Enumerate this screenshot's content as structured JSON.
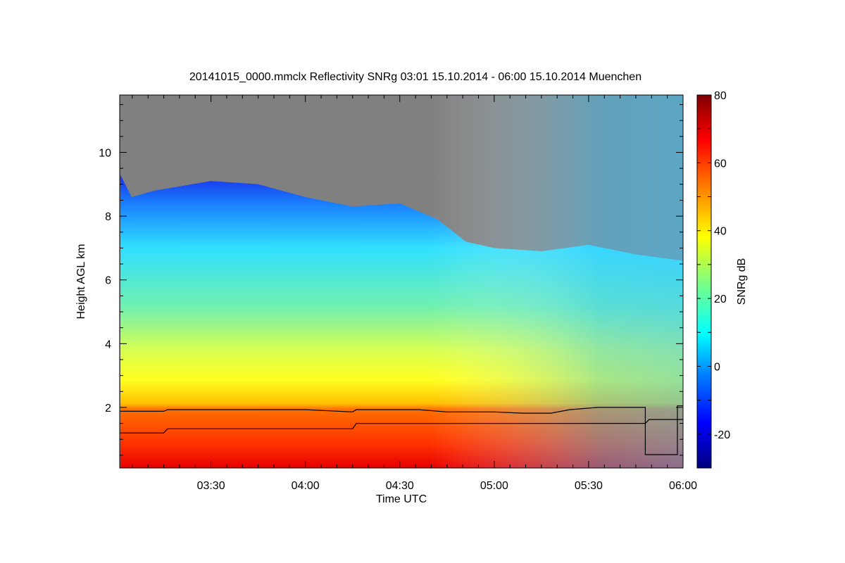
{
  "chart_data": {
    "type": "heatmap",
    "title": "20141015_0000.mmclx Reflectivity SNRg   03:01 15.10.2014 - 06:00 15.10.2014 Muenchen",
    "xlabel": "Time UTC",
    "ylabel": "Height AGL km",
    "colorbar_label": "SNRg dB",
    "x_range_hours": [
      3.0167,
      6.0
    ],
    "y_range_km": [
      0.1,
      11.8
    ],
    "x_ticks": [
      {
        "value": 3.5,
        "label": "03:30"
      },
      {
        "value": 4.0,
        "label": "04:00"
      },
      {
        "value": 4.5,
        "label": "04:30"
      },
      {
        "value": 5.0,
        "label": "05:00"
      },
      {
        "value": 5.5,
        "label": "05:30"
      },
      {
        "value": 6.0,
        "label": "06:00"
      }
    ],
    "y_ticks": [
      {
        "value": 2,
        "label": "2"
      },
      {
        "value": 4,
        "label": "4"
      },
      {
        "value": 6,
        "label": "6"
      },
      {
        "value": 8,
        "label": "8"
      },
      {
        "value": 10,
        "label": "10"
      }
    ],
    "color_range": [
      -30,
      80
    ],
    "color_ticks": [
      {
        "value": -20,
        "label": "-20"
      },
      {
        "value": 0,
        "label": "0"
      },
      {
        "value": 20,
        "label": "20"
      },
      {
        "value": 40,
        "label": "40"
      },
      {
        "value": 60,
        "label": "60"
      },
      {
        "value": 80,
        "label": "80"
      }
    ],
    "no_signal_color": "#808080",
    "colormap": [
      "#000080",
      "#0000ff",
      "#0080ff",
      "#00ffff",
      "#80ff80",
      "#ffff00",
      "#ff8000",
      "#ff0000",
      "#800000"
    ],
    "echo_top_km": [
      {
        "t": 3.02,
        "h": 9.3
      },
      {
        "t": 3.08,
        "h": 8.6
      },
      {
        "t": 3.2,
        "h": 8.8
      },
      {
        "t": 3.3,
        "h": 8.9
      },
      {
        "t": 3.5,
        "h": 9.1
      },
      {
        "t": 3.75,
        "h": 9.0
      },
      {
        "t": 4.0,
        "h": 8.6
      },
      {
        "t": 4.25,
        "h": 8.3
      },
      {
        "t": 4.5,
        "h": 8.4
      },
      {
        "t": 4.7,
        "h": 7.9
      },
      {
        "t": 4.85,
        "h": 7.2
      },
      {
        "t": 5.0,
        "h": 7.0
      },
      {
        "t": 5.25,
        "h": 6.9
      },
      {
        "t": 5.5,
        "h": 7.1
      },
      {
        "t": 5.75,
        "h": 6.8
      },
      {
        "t": 6.0,
        "h": 6.6
      }
    ],
    "layer_line_upper_km": [
      {
        "t": 3.02,
        "h": 1.88
      },
      {
        "t": 3.25,
        "h": 1.88
      },
      {
        "t": 3.27,
        "h": 1.93
      },
      {
        "t": 4.0,
        "h": 1.93
      },
      {
        "t": 4.25,
        "h": 1.86
      },
      {
        "t": 4.27,
        "h": 1.93
      },
      {
        "t": 4.6,
        "h": 1.93
      },
      {
        "t": 4.75,
        "h": 1.86
      },
      {
        "t": 5.0,
        "h": 1.86
      },
      {
        "t": 5.15,
        "h": 1.82
      },
      {
        "t": 5.3,
        "h": 1.82
      },
      {
        "t": 5.4,
        "h": 1.93
      },
      {
        "t": 5.55,
        "h": 2.0
      },
      {
        "t": 5.8,
        "h": 2.0
      },
      {
        "t": 5.8,
        "h": 0.52
      },
      {
        "t": 5.97,
        "h": 0.52
      },
      {
        "t": 5.97,
        "h": 2.05
      },
      {
        "t": 6.0,
        "h": 2.05
      }
    ],
    "layer_line_lower_km": [
      {
        "t": 3.02,
        "h": 1.2
      },
      {
        "t": 3.25,
        "h": 1.2
      },
      {
        "t": 3.27,
        "h": 1.33
      },
      {
        "t": 4.25,
        "h": 1.33
      },
      {
        "t": 4.27,
        "h": 1.5
      },
      {
        "t": 5.8,
        "h": 1.5
      },
      {
        "t": 5.82,
        "h": 1.62
      },
      {
        "t": 6.0,
        "h": 1.62
      }
    ]
  }
}
